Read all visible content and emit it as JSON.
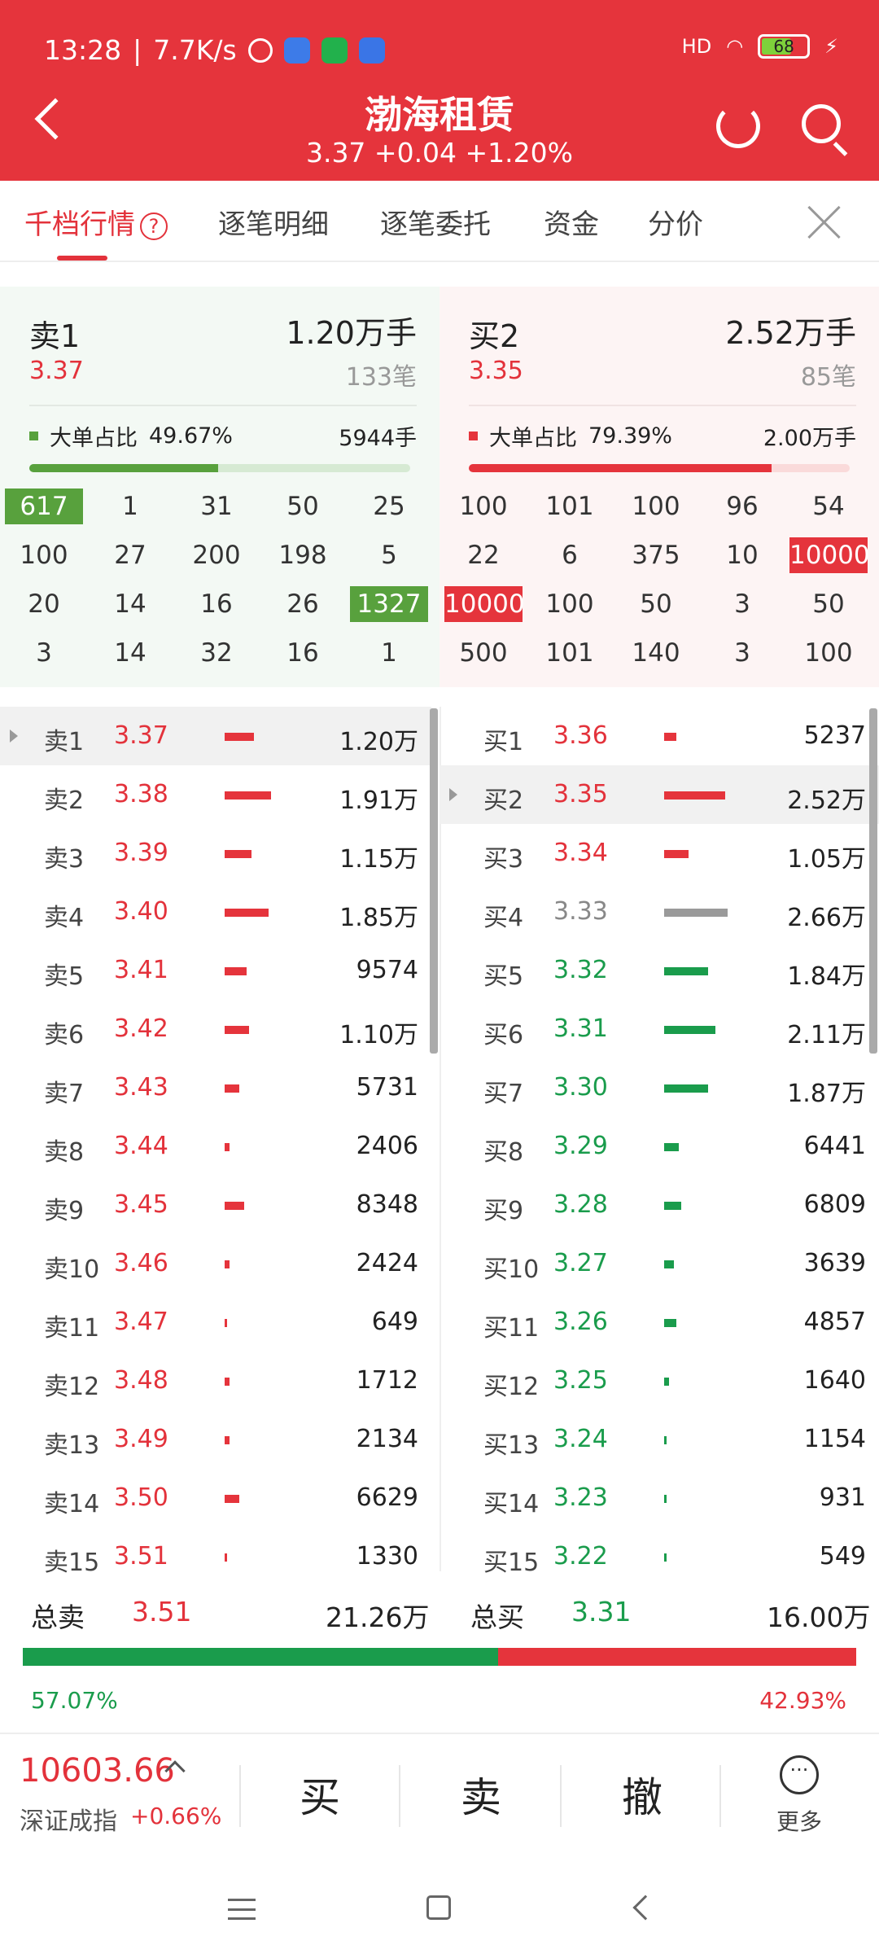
{
  "status": {
    "time": "13:28",
    "speed": "7.7K/s",
    "battery": "68",
    "net": "HD"
  },
  "header": {
    "title": "渤海租赁",
    "subtitle": "3.37 +0.04 +1.20%"
  },
  "tabs": [
    {
      "label": "千档行情"
    },
    {
      "label": "逐笔明细"
    },
    {
      "label": "逐笔委托"
    },
    {
      "label": "资金"
    },
    {
      "label": "分价"
    }
  ],
  "sell_panel": {
    "label": "卖1",
    "volume": "1.20万手",
    "price": "3.37",
    "count": "133笔",
    "big_ratio_label": "大单占比",
    "big_ratio": "49.67%",
    "big_vol": "5944手",
    "ratio_fill": 0.4967
  },
  "buy_panel": {
    "label": "买2",
    "volume": "2.52万手",
    "price": "3.35",
    "count": "85笔",
    "big_ratio_label": "大单占比",
    "big_ratio": "79.39%",
    "big_vol": "2.00万手",
    "ratio_fill": 0.7939
  },
  "sell_queue": [
    [
      "617",
      "1",
      "31",
      "50",
      "25"
    ],
    [
      "100",
      "27",
      "200",
      "198",
      "5"
    ],
    [
      "20",
      "14",
      "16",
      "26",
      "1327"
    ],
    [
      "3",
      "14",
      "32",
      "16",
      "1"
    ]
  ],
  "buy_queue": [
    [
      "100",
      "101",
      "100",
      "96",
      "54"
    ],
    [
      "22",
      "6",
      "375",
      "10",
      "10000"
    ],
    [
      "10000",
      "100",
      "50",
      "3",
      "50"
    ],
    [
      "500",
      "101",
      "140",
      "3",
      "100"
    ]
  ],
  "sell_levels": [
    {
      "label": "卖1",
      "price": "3.37",
      "vol": "1.20万",
      "bar": 0.12
    },
    {
      "label": "卖2",
      "price": "3.38",
      "vol": "1.91万",
      "bar": 0.19
    },
    {
      "label": "卖3",
      "price": "3.39",
      "vol": "1.15万",
      "bar": 0.11
    },
    {
      "label": "卖4",
      "price": "3.40",
      "vol": "1.85万",
      "bar": 0.18
    },
    {
      "label": "卖5",
      "price": "3.41",
      "vol": "9574",
      "bar": 0.09
    },
    {
      "label": "卖6",
      "price": "3.42",
      "vol": "1.10万",
      "bar": 0.1
    },
    {
      "label": "卖7",
      "price": "3.43",
      "vol": "5731",
      "bar": 0.06
    },
    {
      "label": "卖8",
      "price": "3.44",
      "vol": "2406",
      "bar": 0.02
    },
    {
      "label": "卖9",
      "price": "3.45",
      "vol": "8348",
      "bar": 0.08
    },
    {
      "label": "卖10",
      "price": "3.46",
      "vol": "2424",
      "bar": 0.02
    },
    {
      "label": "卖11",
      "price": "3.47",
      "vol": "649",
      "bar": 0.01
    },
    {
      "label": "卖12",
      "price": "3.48",
      "vol": "1712",
      "bar": 0.02
    },
    {
      "label": "卖13",
      "price": "3.49",
      "vol": "2134",
      "bar": 0.02
    },
    {
      "label": "卖14",
      "price": "3.50",
      "vol": "6629",
      "bar": 0.06
    },
    {
      "label": "卖15",
      "price": "3.51",
      "vol": "1330",
      "bar": 0.01
    }
  ],
  "buy_levels": [
    {
      "label": "买1",
      "price": "3.36",
      "vol": "5237",
      "bar": 0.05,
      "color": "red"
    },
    {
      "label": "买2",
      "price": "3.35",
      "vol": "2.52万",
      "bar": 0.25,
      "color": "red"
    },
    {
      "label": "买3",
      "price": "3.34",
      "vol": "1.05万",
      "bar": 0.1,
      "color": "red"
    },
    {
      "label": "买4",
      "price": "3.33",
      "vol": "2.66万",
      "bar": 0.26,
      "color": "grey"
    },
    {
      "label": "买5",
      "price": "3.32",
      "vol": "1.84万",
      "bar": 0.18,
      "color": "green"
    },
    {
      "label": "买6",
      "price": "3.31",
      "vol": "2.11万",
      "bar": 0.21,
      "color": "green"
    },
    {
      "label": "买7",
      "price": "3.30",
      "vol": "1.87万",
      "bar": 0.18,
      "color": "green"
    },
    {
      "label": "买8",
      "price": "3.29",
      "vol": "6441",
      "bar": 0.06,
      "color": "green"
    },
    {
      "label": "买9",
      "price": "3.28",
      "vol": "6809",
      "bar": 0.07,
      "color": "green"
    },
    {
      "label": "买10",
      "price": "3.27",
      "vol": "3639",
      "bar": 0.04,
      "color": "green"
    },
    {
      "label": "买11",
      "price": "3.26",
      "vol": "4857",
      "bar": 0.05,
      "color": "green"
    },
    {
      "label": "买12",
      "price": "3.25",
      "vol": "1640",
      "bar": 0.02,
      "color": "green"
    },
    {
      "label": "买13",
      "price": "3.24",
      "vol": "1154",
      "bar": 0.01,
      "color": "green"
    },
    {
      "label": "买14",
      "price": "3.23",
      "vol": "931",
      "bar": 0.01,
      "color": "green"
    },
    {
      "label": "买15",
      "price": "3.22",
      "vol": "549",
      "bar": 0.01,
      "color": "green"
    }
  ],
  "totals": {
    "sell_label": "总卖",
    "sell_price": "3.51",
    "sell_vol": "21.26万",
    "buy_label": "总买",
    "buy_price": "3.31",
    "buy_vol": "16.00万",
    "sell_pct": "57.07%",
    "buy_pct": "42.93%",
    "sell_ratio": 0.5707
  },
  "bottom": {
    "index_value": "10603.66",
    "index_name": "深证成指",
    "index_change": "+0.66%",
    "buy": "买",
    "sell": "卖",
    "cancel": "撤",
    "more": "更多"
  },
  "colors": {
    "brand": "#e5343c",
    "up": "#e3323b",
    "down": "#1a9c4c"
  }
}
